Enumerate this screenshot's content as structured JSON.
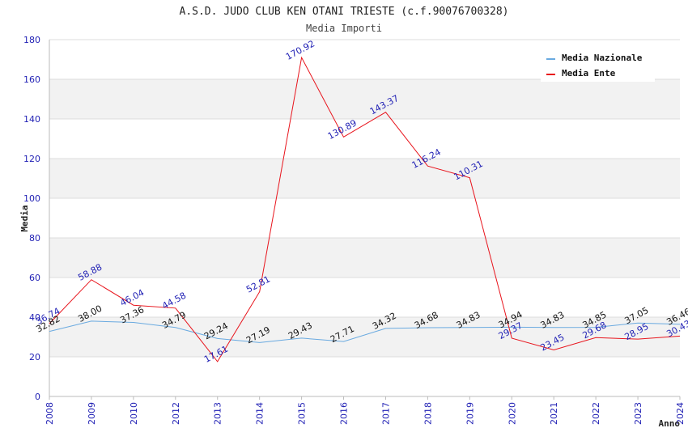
{
  "chart_data": {
    "type": "line",
    "title": "A.S.D. JUDO CLUB KEN OTANI TRIESTE (c.f.90076700328)",
    "subtitle": "Media Importi",
    "xlabel": "Anno",
    "ylabel": "Media",
    "ylim": [
      0,
      180
    ],
    "yticks": [
      "0",
      "20",
      "40",
      "60",
      "80",
      "100",
      "120",
      "140",
      "160",
      "180"
    ],
    "grid": true,
    "legend_position": "top-right",
    "categories": [
      "2008",
      "2009",
      "2010",
      "2012",
      "2013",
      "2014",
      "2015",
      "2016",
      "2017",
      "2018",
      "2019",
      "2020",
      "2021",
      "2022",
      "2023",
      "2024"
    ],
    "series": [
      {
        "name": "Media Nazionale",
        "color": "#6aaae0",
        "values": [
          32.82,
          38.0,
          37.36,
          34.79,
          29.24,
          27.19,
          29.43,
          27.71,
          34.32,
          34.68,
          34.83,
          34.94,
          34.83,
          34.85,
          37.05,
          36.46
        ],
        "labels": [
          "32.82",
          "38.00",
          "37.36",
          "34.79",
          "29.24",
          "27.19",
          "29.43",
          "27.71",
          "34.32",
          "34.68",
          "34.83",
          "34.94",
          "34.83",
          "34.85",
          "37.05",
          "36.46"
        ]
      },
      {
        "name": "Media Ente",
        "color": "#e8141c",
        "values": [
          36.74,
          58.88,
          46.04,
          44.58,
          17.61,
          52.81,
          170.92,
          130.89,
          143.37,
          116.24,
          110.31,
          29.37,
          23.45,
          29.68,
          28.95,
          30.43
        ],
        "labels": [
          "36.74",
          "58.88",
          "46.04",
          "44.58",
          "17.61",
          "52.81",
          "170.92",
          "130.89",
          "143.37",
          "116.24",
          "110.31",
          "29.37",
          "23.45",
          "29.68",
          "28.95",
          "30.43"
        ]
      }
    ]
  }
}
